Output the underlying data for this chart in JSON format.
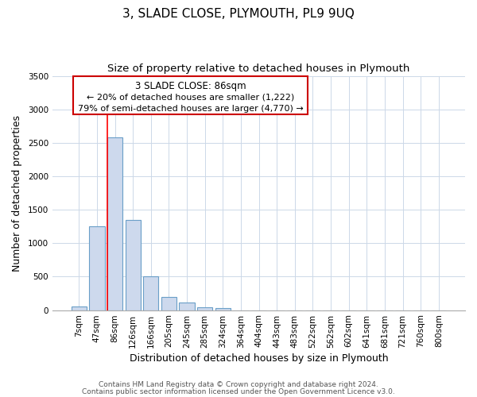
{
  "title": "3, SLADE CLOSE, PLYMOUTH, PL9 9UQ",
  "subtitle": "Size of property relative to detached houses in Plymouth",
  "xlabel": "Distribution of detached houses by size in Plymouth",
  "ylabel": "Number of detached properties",
  "bar_labels": [
    "7sqm",
    "47sqm",
    "86sqm",
    "126sqm",
    "166sqm",
    "205sqm",
    "245sqm",
    "285sqm",
    "324sqm",
    "364sqm",
    "404sqm",
    "443sqm",
    "483sqm",
    "522sqm",
    "562sqm",
    "602sqm",
    "641sqm",
    "681sqm",
    "721sqm",
    "760sqm",
    "800sqm"
  ],
  "bar_values": [
    50,
    1250,
    2580,
    1350,
    500,
    200,
    110,
    45,
    30,
    0,
    0,
    0,
    0,
    0,
    0,
    0,
    0,
    0,
    0,
    0,
    0
  ],
  "bar_color": "#cdd9ed",
  "bar_edge_color": "#6a9fc8",
  "red_line_index": 2,
  "ylim": [
    0,
    3500
  ],
  "yticks": [
    0,
    500,
    1000,
    1500,
    2000,
    2500,
    3000,
    3500
  ],
  "annotation_title": "3 SLADE CLOSE: 86sqm",
  "annotation_line1": "← 20% of detached houses are smaller (1,222)",
  "annotation_line2": "79% of semi-detached houses are larger (4,770) →",
  "annotation_box_color": "#ffffff",
  "annotation_box_edge_color": "#cc0000",
  "footer_line1": "Contains HM Land Registry data © Crown copyright and database right 2024.",
  "footer_line2": "Contains public sector information licensed under the Open Government Licence v3.0.",
  "background_color": "#ffffff",
  "grid_color": "#ccd8e8",
  "title_fontsize": 11,
  "subtitle_fontsize": 9.5,
  "axis_label_fontsize": 9,
  "tick_fontsize": 7.5,
  "footer_fontsize": 6.5
}
